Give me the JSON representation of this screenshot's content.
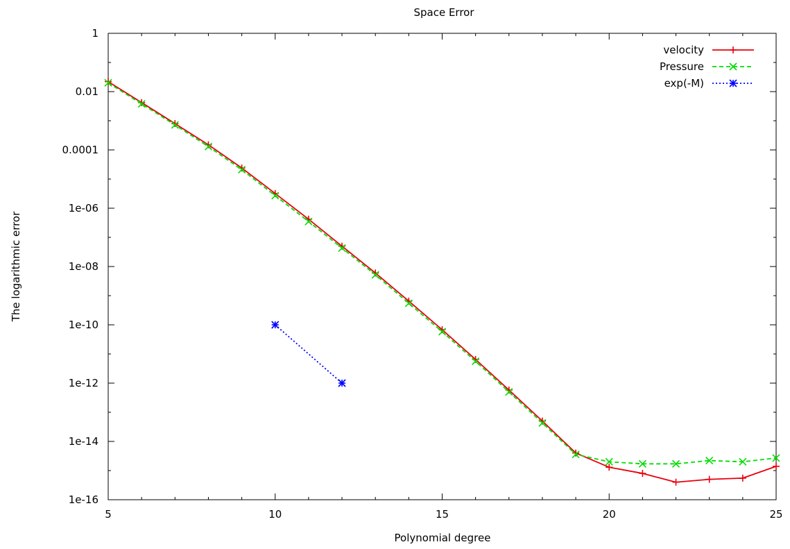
{
  "chart_data": {
    "type": "line",
    "title": "Space Error",
    "xlabel": "Polynomial degree",
    "ylabel": "The logarithmic error",
    "xlim": [
      5,
      25
    ],
    "ylim": [
      1e-16,
      1
    ],
    "yscale": "log",
    "grid": false,
    "legend_position": "top-right",
    "x_ticks": [
      5,
      10,
      15,
      20,
      25
    ],
    "x_tick_labels": [
      "5",
      "10",
      "15",
      "20",
      "25"
    ],
    "y_ticks": [
      1e-16,
      1e-14,
      1e-12,
      1e-10,
      1e-08,
      1e-06,
      0.0001,
      0.01,
      1
    ],
    "y_tick_labels": [
      "1e-16",
      "1e-14",
      "1e-12",
      "1e-10",
      "1e-08",
      "1e-06",
      "0.0001",
      "0.01",
      "1"
    ],
    "series": [
      {
        "name": "velocity",
        "color": "#e8000b",
        "dash": "solid",
        "marker": "plus",
        "x": [
          5,
          6,
          7,
          8,
          9,
          10,
          11,
          12,
          13,
          14,
          15,
          16,
          17,
          18,
          19,
          20,
          21,
          22,
          23,
          24,
          25
        ],
        "y": [
          0.022,
          0.0042,
          0.0008,
          0.00015,
          2.4e-05,
          3.2e-06,
          4.2e-07,
          5e-08,
          6e-09,
          6.5e-10,
          6.8e-11,
          6.5e-12,
          5.8e-13,
          5e-14,
          4e-15,
          1.3e-15,
          8e-16,
          4e-16,
          5e-16,
          5.5e-16,
          1.4e-15
        ]
      },
      {
        "name": "Pressure",
        "color": "#00dd00",
        "dash": "dashed",
        "marker": "cross",
        "x": [
          5,
          6,
          7,
          8,
          9,
          10,
          11,
          12,
          13,
          14,
          15,
          16,
          17,
          18,
          19,
          20,
          21,
          22,
          23,
          24,
          25
        ],
        "y": [
          0.02,
          0.0038,
          0.00072,
          0.00013,
          2.1e-05,
          2.7e-06,
          3.5e-07,
          4.3e-08,
          5.2e-09,
          5.5e-10,
          5.8e-11,
          5.6e-12,
          5e-13,
          4.3e-14,
          3.6e-15,
          2e-15,
          1.7e-15,
          1.7e-15,
          2.2e-15,
          2e-15,
          2.7e-15
        ]
      },
      {
        "name": "exp(-M)",
        "color": "#0000ff",
        "dash": "dotted",
        "marker": "star",
        "x": [
          10,
          12
        ],
        "y": [
          1e-10,
          1e-12
        ]
      }
    ]
  }
}
